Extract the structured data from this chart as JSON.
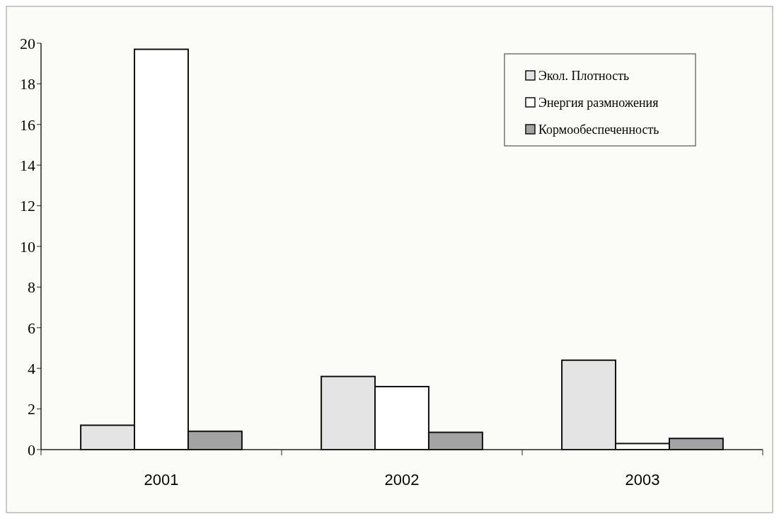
{
  "chart_data": {
    "type": "bar",
    "categories": [
      "2001",
      "2002",
      "2003"
    ],
    "series": [
      {
        "name": "Экол. Плотность",
        "color": "#e4e4e4",
        "values": [
          1.2,
          3.6,
          4.4
        ]
      },
      {
        "name": "Энергия размножения",
        "color": "#ffffff",
        "values": [
          19.7,
          3.1,
          0.3
        ]
      },
      {
        "name": "Кормообеспеченность",
        "color": "#a3a3a3",
        "values": [
          0.9,
          0.85,
          0.55
        ]
      }
    ],
    "ylim": [
      0,
      20
    ],
    "yticks": [
      0,
      2,
      4,
      6,
      8,
      10,
      12,
      14,
      16,
      18,
      20
    ],
    "grid": false,
    "legend": "top right"
  }
}
